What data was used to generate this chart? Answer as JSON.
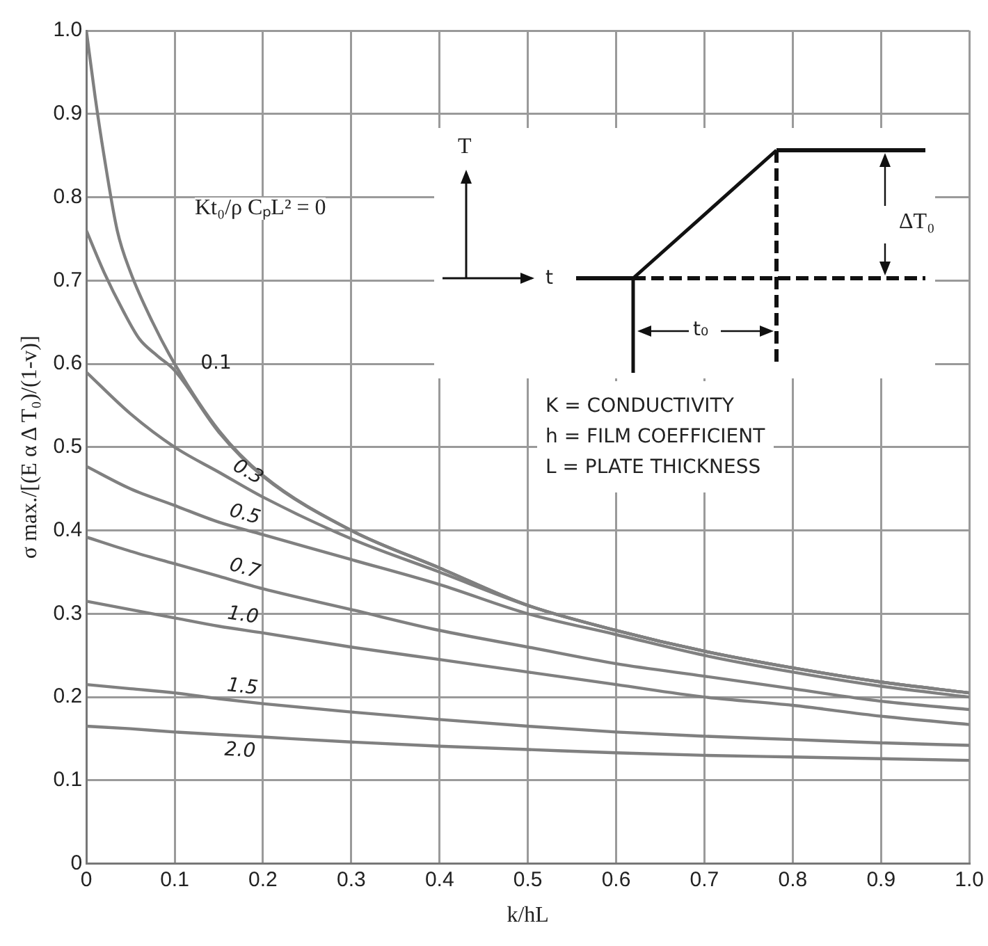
{
  "chart_data": {
    "type": "line",
    "xlabel": "k/hL",
    "ylabel": "σ max./[(E α Δ T₀)/(1-v)]",
    "x": [
      0,
      0.05,
      0.1,
      0.15,
      0.2,
      0.3,
      0.4,
      0.5,
      0.6,
      0.7,
      0.8,
      0.9,
      1.0
    ],
    "series": [
      {
        "color": "#808080",
        "x": [
          0,
          0.01,
          0.02,
          0.035,
          0.05,
          0.075,
          0.1,
          0.15,
          0.2,
          0.3,
          0.4,
          0.5,
          0.6,
          0.7,
          0.8,
          0.9,
          1.0
        ],
        "values": [
          1.0,
          0.92,
          0.85,
          0.76,
          0.71,
          0.65,
          0.6,
          0.52,
          0.466,
          0.4,
          0.355,
          0.31,
          0.28,
          0.255,
          0.235,
          0.218,
          0.205
        ]
      },
      {
        "name": "0.1",
        "color": "#808080",
        "x": [
          0,
          0.02,
          0.042,
          0.06,
          0.08,
          0.1,
          0.15,
          0.2,
          0.3,
          0.4,
          0.5,
          0.6,
          0.7,
          0.8,
          0.9,
          1.0
        ],
        "values": [
          0.76,
          0.71,
          0.663,
          0.63,
          0.61,
          0.592,
          0.518,
          0.465,
          0.4,
          0.355,
          0.31,
          0.28,
          0.255,
          0.235,
          0.218,
          0.205
        ]
      },
      {
        "name": "0.3",
        "color": "#808080",
        "values": [
          0.59,
          0.54,
          0.5,
          0.47,
          0.44,
          0.39,
          0.35,
          0.31,
          0.28,
          0.255,
          0.235,
          0.218,
          0.205
        ]
      },
      {
        "name": "0.5",
        "color": "#808080",
        "values": [
          0.477,
          0.45,
          0.43,
          0.41,
          0.395,
          0.365,
          0.335,
          0.3,
          0.275,
          0.25,
          0.23,
          0.213,
          0.2
        ]
      },
      {
        "name": "0.7",
        "color": "#808080",
        "values": [
          0.392,
          0.375,
          0.36,
          0.345,
          0.33,
          0.305,
          0.28,
          0.26,
          0.24,
          0.225,
          0.21,
          0.195,
          0.185
        ]
      },
      {
        "name": "1.0",
        "color": "#808080",
        "values": [
          0.315,
          0.305,
          0.295,
          0.285,
          0.277,
          0.26,
          0.245,
          0.23,
          0.215,
          0.2,
          0.19,
          0.177,
          0.167
        ]
      },
      {
        "name": "1.5",
        "color": "#808080",
        "values": [
          0.215,
          0.21,
          0.205,
          0.198,
          0.192,
          0.182,
          0.173,
          0.165,
          0.158,
          0.153,
          0.149,
          0.145,
          0.142
        ]
      },
      {
        "name": "2.0",
        "color": "#808080",
        "values": [
          0.165,
          0.162,
          0.158,
          0.155,
          0.152,
          0.146,
          0.141,
          0.137,
          0.133,
          0.13,
          0.128,
          0.126,
          0.124
        ]
      }
    ],
    "xlim": [
      0,
      1
    ],
    "xticks": [
      0,
      0.1,
      0.2,
      0.3,
      0.4,
      0.5,
      0.6,
      0.7,
      0.8,
      0.9,
      {
        "value": 1,
        "label": "1.0"
      }
    ],
    "ylim": [
      0,
      1
    ],
    "yticks": [
      0,
      0.1,
      0.2,
      0.3,
      0.4,
      0.5,
      0.6,
      0.7,
      0.8,
      0.9,
      {
        "value": 1,
        "label": "1.0"
      }
    ],
    "grid": true,
    "legend": false,
    "marker": "none",
    "line_style": "solid",
    "annotations": [
      "Kt₀/ρ CₚL² = 0",
      "T",
      "t",
      "ΔT₀",
      "t₀",
      "K = CONDUCTIVITY",
      "h = FILM COEFFICIENT",
      "L = PLATE THICKNESS"
    ]
  }
}
